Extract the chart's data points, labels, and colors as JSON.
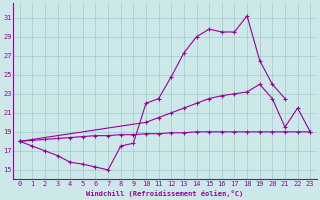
{
  "xlabel": "Windchill (Refroidissement éolien,°C)",
  "xlim": [
    -0.5,
    23.5
  ],
  "ylim": [
    14,
    32.5
  ],
  "yticks": [
    15,
    17,
    19,
    21,
    23,
    25,
    27,
    29,
    31
  ],
  "xticks": [
    0,
    1,
    2,
    3,
    4,
    5,
    6,
    7,
    8,
    9,
    10,
    11,
    12,
    13,
    14,
    15,
    16,
    17,
    18,
    19,
    20,
    21,
    22,
    23
  ],
  "bg_color": "#cce8e8",
  "grid_color": "#a0cccc",
  "line_color": "#990099",
  "line1_x": [
    0,
    1,
    2,
    3,
    4,
    5,
    6,
    7,
    8,
    9,
    10,
    11,
    12,
    13,
    14,
    15,
    16,
    17,
    18,
    19,
    20,
    21
  ],
  "line1_y": [
    18.0,
    17.5,
    17.0,
    16.5,
    15.8,
    15.6,
    15.3,
    15.0,
    17.5,
    17.8,
    22.0,
    22.5,
    24.8,
    27.3,
    29.0,
    29.8,
    29.5,
    29.5,
    31.2,
    26.5,
    24.0,
    22.5
  ],
  "line2_x": [
    0,
    1,
    2,
    3,
    4,
    5,
    6,
    7,
    8,
    9,
    10,
    11,
    12,
    13,
    14,
    15,
    16,
    17,
    18,
    19,
    20,
    21,
    22,
    23
  ],
  "line2_y": [
    18.0,
    18.1,
    18.2,
    18.3,
    18.4,
    18.5,
    18.6,
    18.6,
    18.7,
    18.7,
    18.8,
    18.8,
    18.9,
    18.9,
    19.0,
    19.0,
    19.0,
    19.0,
    19.0,
    19.0,
    19.0,
    19.0,
    19.0,
    19.0
  ],
  "line3_x": [
    0,
    10,
    11,
    12,
    13,
    14,
    15,
    16,
    17,
    18,
    19,
    20,
    21,
    22,
    23
  ],
  "line3_y": [
    18.0,
    20.0,
    20.5,
    21.0,
    21.5,
    22.0,
    22.5,
    22.8,
    23.0,
    23.2,
    24.0,
    22.5,
    19.5,
    21.5,
    19.0
  ]
}
